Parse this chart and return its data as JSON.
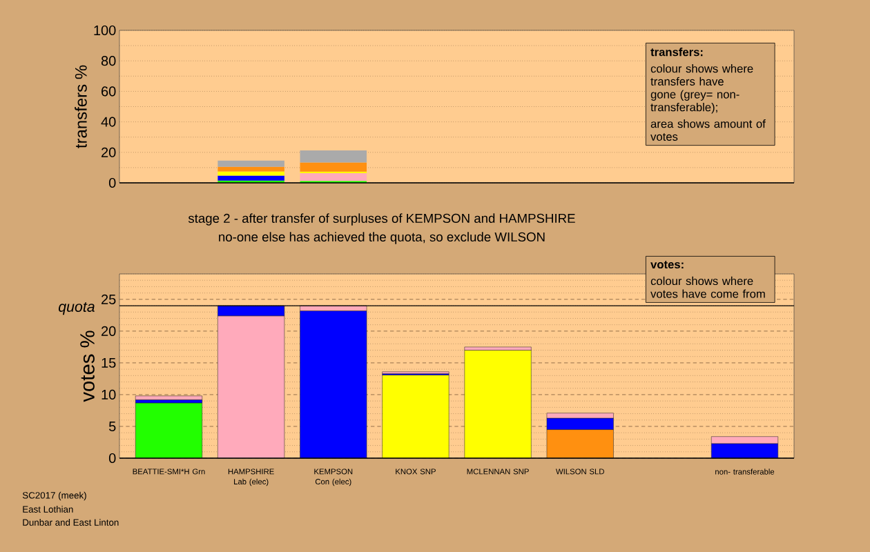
{
  "chart_data": [
    {
      "type": "bar",
      "stacked": true,
      "ylabel": "transfers %",
      "categories": [
        null,
        null,
        null,
        null,
        null,
        null,
        null,
        null
      ],
      "series": [
        {
          "color": "#22ff00",
          "values": [
            null,
            1.5,
            1.2,
            null,
            null,
            null,
            null,
            null
          ]
        },
        {
          "color": "#0000ff",
          "values": [
            null,
            3.3,
            null,
            null,
            null,
            null,
            null,
            null
          ]
        },
        {
          "color": "#ffaabb",
          "values": [
            null,
            null,
            5.1,
            null,
            null,
            null,
            null,
            null
          ]
        },
        {
          "color": "#ffff00",
          "values": [
            null,
            2.7,
            1.0,
            null,
            null,
            null,
            null,
            null
          ]
        },
        {
          "color": "#ff9010",
          "values": [
            null,
            3.0,
            6.0,
            null,
            null,
            null,
            null,
            null
          ]
        },
        {
          "color": "#aaaaaa",
          "values": [
            null,
            4.1,
            8.0,
            null,
            null,
            null,
            null,
            null
          ]
        }
      ],
      "ylim": [
        0,
        100
      ],
      "yticks": [
        0,
        {
          "value": 10,
          "label": null
        },
        20,
        {
          "value": 30,
          "label": null
        },
        40,
        {
          "value": 50,
          "label": null
        },
        60,
        {
          "value": 70,
          "label": null
        },
        80,
        {
          "value": 90,
          "label": null
        },
        100
      ],
      "grid": "y",
      "tick_labels": "y",
      "annotations": [
        "transfers:",
        "colour shows where transfers have gone (grey= non-transferable);",
        "area shows amount of votes"
      ]
    },
    {
      "type": "bar",
      "stacked": true,
      "ylabel": "votes %",
      "title": "stage 2 - after transfer of surpluses of KEMPSON and HAMPSHIRE",
      "subtitle": "no-one else has achieved the quota, so exclude WILSON",
      "categories": [
        "BEATTIE-SMI*H Grn",
        "HAMPSHIRE Lab (elec)",
        "KEMPSON Con (elec)",
        "KNOX SNP",
        "MCLENNAN SNP",
        "WILSON SLD",
        null,
        "non- transferable"
      ],
      "series": [
        {
          "colors": [
            "#22ff00",
            "#ffaabb",
            "#0000ff",
            "#ffff00",
            "#ffff00",
            "#ff9010",
            "#aaaaaa",
            "#aaaaaa"
          ],
          "values": [
            8.7,
            22.4,
            23.2,
            13.1,
            17.0,
            4.5,
            null,
            null
          ]
        },
        {
          "color": "#0000ff",
          "values": [
            0.5,
            1.6,
            null,
            0.2,
            null,
            1.8,
            null,
            2.3
          ]
        },
        {
          "color": "#ffaabb",
          "values": [
            0.6,
            null,
            0.8,
            0.3,
            0.5,
            0.8,
            null,
            1.1
          ]
        }
      ],
      "ylim": [
        0,
        29
      ],
      "yticks": [
        0,
        {
          "value": 1,
          "label": null
        },
        {
          "value": 2,
          "label": null
        },
        {
          "value": 3,
          "label": null
        },
        {
          "value": 4,
          "label": null
        },
        5,
        {
          "value": 6,
          "label": null
        },
        {
          "value": 7,
          "label": null
        },
        {
          "value": 8,
          "label": null
        },
        {
          "value": 9,
          "label": null
        },
        10,
        {
          "value": 11,
          "label": null
        },
        {
          "value": 12,
          "label": null
        },
        {
          "value": 13,
          "label": null
        },
        {
          "value": 14,
          "label": null
        },
        15,
        {
          "value": 16,
          "label": null
        },
        {
          "value": 17,
          "label": null
        },
        {
          "value": 18,
          "label": null
        },
        {
          "value": 19,
          "label": null
        },
        20,
        {
          "value": 21,
          "label": null
        },
        {
          "value": 22,
          "label": null
        },
        {
          "value": 23,
          "label": null
        },
        {
          "value": 24,
          "label": null
        },
        25,
        {
          "value": 26,
          "label": null
        },
        {
          "value": 27,
          "label": null
        },
        {
          "value": 28,
          "label": null
        },
        {
          "value": 29,
          "label": null
        }
      ],
      "grid": "y",
      "ref_lines": [
        {
          "axis": "y",
          "value": 24,
          "label": "quota"
        }
      ],
      "annotations": [
        "votes:",
        "colour shows where votes have come from",
        "SC2017 (meek)",
        "East Lothian",
        "Dunbar and East Linton"
      ]
    }
  ]
}
